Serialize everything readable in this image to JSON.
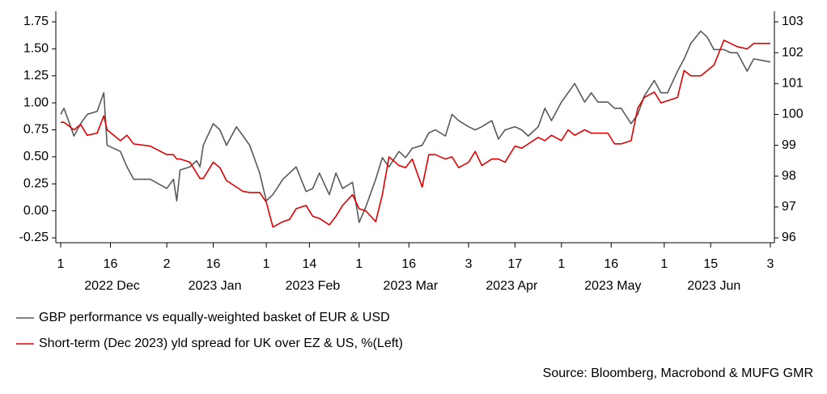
{
  "chart_data": {
    "type": "line",
    "source": "Source: Bloomberg, Macrobond & MUFG GMR",
    "x": [
      "2022-12-01",
      "2022-12-02",
      "2022-12-05",
      "2022-12-07",
      "2022-12-09",
      "2022-12-12",
      "2022-12-14",
      "2022-12-15",
      "2022-12-19",
      "2022-12-21",
      "2022-12-23",
      "2022-12-28",
      "2023-01-02",
      "2023-01-04",
      "2023-01-05",
      "2023-01-06",
      "2023-01-09",
      "2023-01-11",
      "2023-01-12",
      "2023-01-13",
      "2023-01-16",
      "2023-01-18",
      "2023-01-20",
      "2023-01-23",
      "2023-01-25",
      "2023-01-27",
      "2023-01-30",
      "2023-02-01",
      "2023-02-03",
      "2023-02-06",
      "2023-02-08",
      "2023-02-10",
      "2023-02-13",
      "2023-02-15",
      "2023-02-17",
      "2023-02-20",
      "2023-02-22",
      "2023-02-24",
      "2023-02-27",
      "2023-03-01",
      "2023-03-03",
      "2023-03-06",
      "2023-03-08",
      "2023-03-10",
      "2023-03-13",
      "2023-03-15",
      "2023-03-17",
      "2023-03-20",
      "2023-03-22",
      "2023-03-24",
      "2023-03-27",
      "2023-03-29",
      "2023-03-31",
      "2023-04-03",
      "2023-04-05",
      "2023-04-07",
      "2023-04-10",
      "2023-04-12",
      "2023-04-14",
      "2023-04-17",
      "2023-04-19",
      "2023-04-21",
      "2023-04-24",
      "2023-04-26",
      "2023-04-28",
      "2023-05-01",
      "2023-05-03",
      "2023-05-05",
      "2023-05-08",
      "2023-05-10",
      "2023-05-12",
      "2023-05-15",
      "2023-05-17",
      "2023-05-19",
      "2023-05-22",
      "2023-05-24",
      "2023-05-26",
      "2023-05-29",
      "2023-05-31",
      "2023-06-02",
      "2023-06-05",
      "2023-06-07",
      "2023-06-09",
      "2023-06-12",
      "2023-06-14",
      "2023-06-16",
      "2023-06-19",
      "2023-06-21",
      "2023-06-23",
      "2023-06-26",
      "2023-06-28",
      "2023-07-03"
    ],
    "series": [
      {
        "name": "GBP performance vs equally-weighted basket of EUR & USD",
        "color": "#595959",
        "axis": "y2",
        "values": [
          100.0,
          100.2,
          99.3,
          99.7,
          100.0,
          100.1,
          100.7,
          99.0,
          98.8,
          98.3,
          97.9,
          97.9,
          97.6,
          97.9,
          97.2,
          98.2,
          98.3,
          98.5,
          98.3,
          99.0,
          99.7,
          99.5,
          99.0,
          99.6,
          99.3,
          99.0,
          98.1,
          97.2,
          97.4,
          97.9,
          98.1,
          98.3,
          97.5,
          97.6,
          98.1,
          97.4,
          98.1,
          97.6,
          97.8,
          96.5,
          97.0,
          97.9,
          98.6,
          98.3,
          98.8,
          98.6,
          98.9,
          99.0,
          99.4,
          99.5,
          99.3,
          100.0,
          99.8,
          99.6,
          99.5,
          99.6,
          99.8,
          99.2,
          99.5,
          99.6,
          99.5,
          99.3,
          99.6,
          100.2,
          99.8,
          100.4,
          100.7,
          101.0,
          100.4,
          100.7,
          100.4,
          100.4,
          100.2,
          100.2,
          99.7,
          100.0,
          100.6,
          101.1,
          100.7,
          100.7,
          101.4,
          101.8,
          102.3,
          102.7,
          102.5,
          102.1,
          102.1,
          102.0,
          102.0,
          101.4,
          101.8,
          101.7
        ]
      },
      {
        "name": "Short-term (Dec 2023) yld spread for UK over EZ & US, %(Left)",
        "color": "#e00000",
        "values": [
          0.82,
          0.82,
          0.75,
          0.8,
          0.7,
          0.72,
          0.88,
          0.75,
          0.65,
          0.7,
          0.62,
          0.6,
          0.52,
          0.52,
          0.48,
          0.48,
          0.45,
          0.35,
          0.3,
          0.3,
          0.45,
          0.4,
          0.28,
          0.22,
          0.18,
          0.17,
          0.17,
          0.08,
          -0.15,
          -0.1,
          -0.08,
          0.02,
          0.05,
          -0.05,
          -0.07,
          -0.13,
          -0.05,
          0.05,
          0.15,
          0.02,
          0.0,
          -0.1,
          0.15,
          0.5,
          0.42,
          0.4,
          0.48,
          0.22,
          0.52,
          0.52,
          0.48,
          0.5,
          0.4,
          0.45,
          0.55,
          0.42,
          0.48,
          0.48,
          0.45,
          0.6,
          0.58,
          0.62,
          0.68,
          0.65,
          0.7,
          0.65,
          0.75,
          0.7,
          0.75,
          0.72,
          0.72,
          0.72,
          0.62,
          0.62,
          0.65,
          0.95,
          1.05,
          1.1,
          1.0,
          1.02,
          1.05,
          1.3,
          1.25,
          1.25,
          1.3,
          1.35,
          1.58,
          1.55,
          1.52,
          1.5,
          1.55,
          1.55
        ]
      }
    ],
    "xlim": [
      "2022-12-01",
      "2023-07-03"
    ],
    "xticks": [
      {
        "value": "2022-12-01",
        "label": "1"
      },
      {
        "value": "2022-12-16",
        "label": "16"
      },
      {
        "value": "2023-01-02",
        "label": "2"
      },
      {
        "value": "2023-01-16",
        "label": "16"
      },
      {
        "value": "2023-02-01",
        "label": "1"
      },
      {
        "value": "2023-02-14",
        "label": "14"
      },
      {
        "value": "2023-03-01",
        "label": "1"
      },
      {
        "value": "2023-03-16",
        "label": "16"
      },
      {
        "value": "2023-04-03",
        "label": "3"
      },
      {
        "value": "2023-04-17",
        "label": "17"
      },
      {
        "value": "2023-05-01",
        "label": "1"
      },
      {
        "value": "2023-05-16",
        "label": "16"
      },
      {
        "value": "2023-06-01",
        "label": "1"
      },
      {
        "value": "2023-06-15",
        "label": "15"
      },
      {
        "value": "2023-07-03",
        "label": "3"
      }
    ],
    "month_labels": [
      {
        "month": "2022-12",
        "label": "2022 Dec"
      },
      {
        "month": "2023-01",
        "label": "2023 Jan"
      },
      {
        "month": "2023-02",
        "label": "2023 Feb"
      },
      {
        "month": "2023-03",
        "label": "2023 Mar"
      },
      {
        "month": "2023-04",
        "label": "2023 Apr"
      },
      {
        "month": "2023-05",
        "label": "2023 May"
      },
      {
        "month": "2023-06",
        "label": "2023 Jun"
      }
    ],
    "ylim": [
      -0.25,
      1.75
    ],
    "yticks": [
      {
        "value": -0.25,
        "label": "-0.25"
      },
      {
        "value": 0,
        "label": "0.00"
      },
      {
        "value": 0.25,
        "label": "0.25"
      },
      {
        "value": 0.5,
        "label": "0.50"
      },
      {
        "value": 0.75,
        "label": "0.75"
      },
      {
        "value": 1,
        "label": "1.00"
      },
      {
        "value": 1.25,
        "label": "1.25"
      },
      {
        "value": 1.5,
        "label": "1.50"
      },
      {
        "value": 1.75,
        "label": "1.75"
      }
    ],
    "y2lim": [
      96,
      103
    ],
    "y2ticks": [
      96,
      97,
      98,
      99,
      100,
      101,
      102,
      103
    ],
    "grid": false
  }
}
